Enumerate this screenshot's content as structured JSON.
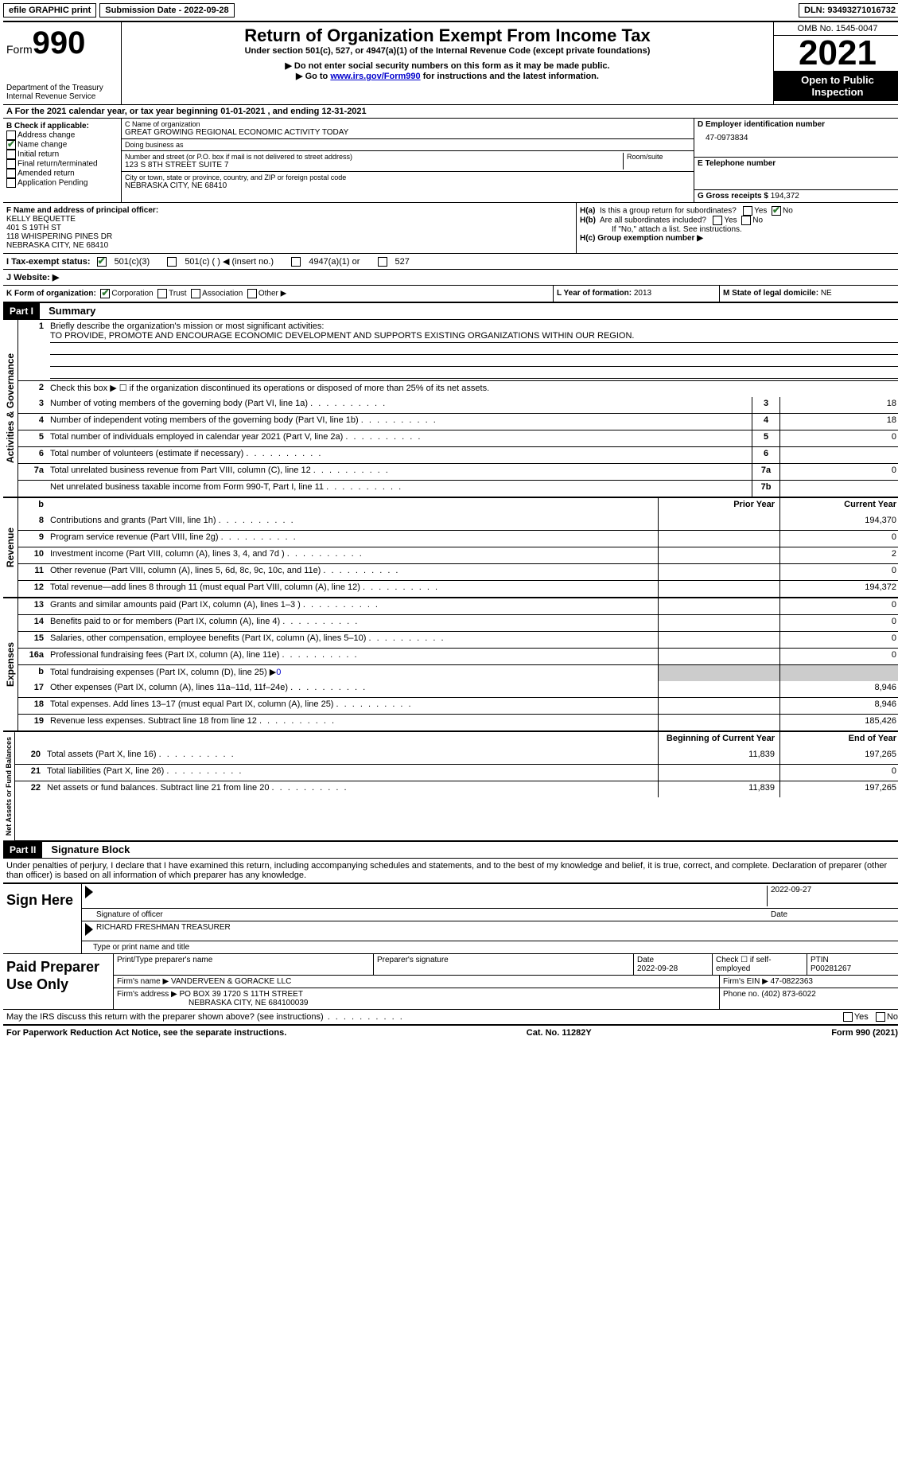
{
  "topbar": {
    "efile": "efile GRAPHIC print",
    "submission_label": "Submission Date - ",
    "submission_date": "2022-09-28",
    "dln_label": "DLN: ",
    "dln": "93493271016732"
  },
  "header": {
    "form_word": "Form",
    "form_num": "990",
    "dept": "Department of the Treasury",
    "irs": "Internal Revenue Service",
    "title": "Return of Organization Exempt From Income Tax",
    "subtitle": "Under section 501(c), 527, or 4947(a)(1) of the Internal Revenue Code (except private foundations)",
    "note1": "▶ Do not enter social security numbers on this form as it may be made public.",
    "note2_pre": "▶ Go to ",
    "note2_link": "www.irs.gov/Form990",
    "note2_post": " for instructions and the latest information.",
    "omb": "OMB No. 1545-0047",
    "year": "2021",
    "open": "Open to Public Inspection"
  },
  "rowA": {
    "text_pre": "A For the 2021 calendar year, or tax year beginning ",
    "begin": "01-01-2021",
    "mid": " , and ending ",
    "end": "12-31-2021"
  },
  "B": {
    "heading": "B Check if applicable:",
    "items": [
      {
        "label": "Address change",
        "checked": false
      },
      {
        "label": "Name change",
        "checked": true
      },
      {
        "label": "Initial return",
        "checked": false
      },
      {
        "label": "Final return/terminated",
        "checked": false
      },
      {
        "label": "Amended return",
        "checked": false
      },
      {
        "label": "Application Pending",
        "checked": false
      }
    ]
  },
  "C": {
    "name_label": "C Name of organization",
    "name": "GREAT GROWING REGIONAL ECONOMIC ACTIVITY TODAY",
    "dba_label": "Doing business as",
    "dba": "",
    "street_label": "Number and street (or P.O. box if mail is not delivered to street address)",
    "room_label": "Room/suite",
    "street": "123 S 8TH STREET SUITE 7",
    "city_label": "City or town, state or province, country, and ZIP or foreign postal code",
    "city": "NEBRASKA CITY, NE  68410"
  },
  "D": {
    "label": "D Employer identification number",
    "ein": "47-0973834",
    "phone_label": "E Telephone number",
    "phone": "",
    "gross_label": "G Gross receipts $ ",
    "gross": "194,372"
  },
  "F": {
    "label": "F Name and address of principal officer:",
    "name": "KELLY BEQUETTE",
    "addr1": "401 S 19TH ST",
    "addr2": "118 WHISPERING PINES DR",
    "addr3": "NEBRASKA CITY, NE  68410"
  },
  "H": {
    "a_label": "H(a)  Is this a group return for subordinates?",
    "a_yes": "Yes",
    "a_no": "No",
    "a_checked": "No",
    "b_label": "H(b)  Are all subordinates included?",
    "b_yes": "Yes",
    "b_no": "No",
    "b_note": "If \"No,\" attach a list. See instructions.",
    "c_label": "H(c)  Group exemption number ▶"
  },
  "I": {
    "label": "I   Tax-exempt status:",
    "opts": [
      "501(c)(3)",
      "501(c) (  ) ◀ (insert no.)",
      "4947(a)(1) or",
      "527"
    ],
    "checked_index": 0
  },
  "J": {
    "label": "J   Website: ▶",
    "value": ""
  },
  "K": {
    "label": "K Form of organization:",
    "opts": [
      "Corporation",
      "Trust",
      "Association",
      "Other ▶"
    ],
    "checked_index": 0,
    "L_label": "L Year of formation: ",
    "L_val": "2013",
    "M_label": "M State of legal domicile: ",
    "M_val": "NE"
  },
  "part1": {
    "tag": "Part I",
    "title": "Summary",
    "mission_label": "Briefly describe the organization's mission or most significant activities:",
    "mission": "TO PROVIDE, PROMOTE AND ENCOURAGE ECONOMIC DEVELOPMENT AND SUPPORTS EXISTING ORGANIZATIONS WITHIN OUR REGION.",
    "line2": "Check this box ▶ ☐  if the organization discontinued its operations or disposed of more than 25% of its net assets.",
    "governance_lines": [
      {
        "n": "3",
        "desc": "Number of voting members of the governing body (Part VI, line 1a)",
        "box": "3",
        "val": "18"
      },
      {
        "n": "4",
        "desc": "Number of independent voting members of the governing body (Part VI, line 1b)",
        "box": "4",
        "val": "18"
      },
      {
        "n": "5",
        "desc": "Total number of individuals employed in calendar year 2021 (Part V, line 2a)",
        "box": "5",
        "val": "0"
      },
      {
        "n": "6",
        "desc": "Total number of volunteers (estimate if necessary)",
        "box": "6",
        "val": ""
      },
      {
        "n": "7a",
        "desc": "Total unrelated business revenue from Part VIII, column (C), line 12",
        "box": "7a",
        "val": "0"
      },
      {
        "n": "",
        "desc": "Net unrelated business taxable income from Form 990-T, Part I, line 11",
        "box": "7b",
        "val": ""
      }
    ],
    "col_prior": "Prior Year",
    "col_current": "Current Year",
    "revenue_lines": [
      {
        "n": "8",
        "desc": "Contributions and grants (Part VIII, line 1h)",
        "prior": "",
        "cur": "194,370"
      },
      {
        "n": "9",
        "desc": "Program service revenue (Part VIII, line 2g)",
        "prior": "",
        "cur": "0"
      },
      {
        "n": "10",
        "desc": "Investment income (Part VIII, column (A), lines 3, 4, and 7d )",
        "prior": "",
        "cur": "2"
      },
      {
        "n": "11",
        "desc": "Other revenue (Part VIII, column (A), lines 5, 6d, 8c, 9c, 10c, and 11e)",
        "prior": "",
        "cur": "0"
      },
      {
        "n": "12",
        "desc": "Total revenue—add lines 8 through 11 (must equal Part VIII, column (A), line 12)",
        "prior": "",
        "cur": "194,372"
      }
    ],
    "expense_lines": [
      {
        "n": "13",
        "desc": "Grants and similar amounts paid (Part IX, column (A), lines 1–3 )",
        "prior": "",
        "cur": "0"
      },
      {
        "n": "14",
        "desc": "Benefits paid to or for members (Part IX, column (A), line 4)",
        "prior": "",
        "cur": "0"
      },
      {
        "n": "15",
        "desc": "Salaries, other compensation, employee benefits (Part IX, column (A), lines 5–10)",
        "prior": "",
        "cur": "0"
      },
      {
        "n": "16a",
        "desc": "Professional fundraising fees (Part IX, column (A), line 11e)",
        "prior": "",
        "cur": "0"
      }
    ],
    "line_b": {
      "n": "b",
      "desc": "Total fundraising expenses (Part IX, column (D), line 25) ▶",
      "val": "0"
    },
    "expense_lines2": [
      {
        "n": "17",
        "desc": "Other expenses (Part IX, column (A), lines 11a–11d, 11f–24e)",
        "prior": "",
        "cur": "8,946"
      },
      {
        "n": "18",
        "desc": "Total expenses. Add lines 13–17 (must equal Part IX, column (A), line 25)",
        "prior": "",
        "cur": "8,946"
      },
      {
        "n": "19",
        "desc": "Revenue less expenses. Subtract line 18 from line 12",
        "prior": "",
        "cur": "185,426"
      }
    ],
    "col_begin": "Beginning of Current Year",
    "col_end": "End of Year",
    "net_lines": [
      {
        "n": "20",
        "desc": "Total assets (Part X, line 16)",
        "prior": "11,839",
        "cur": "197,265"
      },
      {
        "n": "21",
        "desc": "Total liabilities (Part X, line 26)",
        "prior": "",
        "cur": "0"
      },
      {
        "n": "22",
        "desc": "Net assets or fund balances. Subtract line 21 from line 20",
        "prior": "11,839",
        "cur": "197,265"
      }
    ],
    "vtabs": {
      "gov": "Activities & Governance",
      "rev": "Revenue",
      "exp": "Expenses",
      "net": "Net Assets or Fund Balances"
    }
  },
  "part2": {
    "tag": "Part II",
    "title": "Signature Block",
    "penalty": "Under penalties of perjury, I declare that I have examined this return, including accompanying schedules and statements, and to the best of my knowledge and belief, it is true, correct, and complete. Declaration of preparer (other than officer) is based on all information of which preparer has any knowledge.",
    "sign_here": "Sign Here",
    "sig_officer": "Signature of officer",
    "sig_date": "2022-09-27",
    "date_label": "Date",
    "printed_name": "RICHARD FRESHMAN TREASURER",
    "printed_label": "Type or print name and title",
    "paid": "Paid Preparer Use Only",
    "p_name_label": "Print/Type preparer's name",
    "p_sig_label": "Preparer's signature",
    "p_date_label": "Date",
    "p_date": "2022-09-28",
    "p_check_label": "Check ☐ if self-employed",
    "ptin_label": "PTIN",
    "ptin": "P00281267",
    "firm_name_label": "Firm's name   ▶ ",
    "firm_name": "VANDERVEEN & GORACKE LLC",
    "firm_ein_label": "Firm's EIN ▶ ",
    "firm_ein": "47-0822363",
    "firm_addr_label": "Firm's address ▶ ",
    "firm_addr1": "PO BOX 39 1720 S 11TH STREET",
    "firm_addr2": "NEBRASKA CITY, NE  684100039",
    "phone_label": "Phone no. ",
    "phone": "(402) 873-6022"
  },
  "footer": {
    "discuss": "May the IRS discuss this return with the preparer shown above? (see instructions)",
    "yes": "Yes",
    "no": "No",
    "paperwork": "For Paperwork Reduction Act Notice, see the separate instructions.",
    "cat": "Cat. No. 11282Y",
    "formref": "Form 990 (2021)"
  }
}
